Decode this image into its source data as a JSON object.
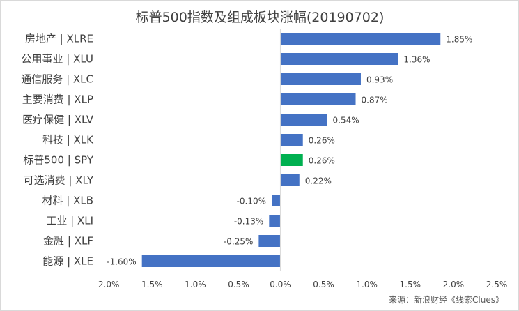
{
  "chart_data": {
    "type": "bar",
    "orientation": "horizontal",
    "title": "标普500指数及组成板块涨幅(20190702)",
    "categories": [
      "房地产 | XLRE",
      "公用事业 | XLU",
      "通信服务 | XLC",
      "主要消费 | XLP",
      "医疗保健 | XLV",
      "科技 | XLK",
      "标普500 | SPY",
      "可选消费 | XLY",
      "材料 | XLB",
      "工业 | XLI",
      "金融 | XLF",
      "能源 | XLE"
    ],
    "values": [
      1.85,
      1.36,
      0.93,
      0.87,
      0.54,
      0.26,
      0.26,
      0.22,
      -0.1,
      -0.13,
      -0.25,
      -1.6
    ],
    "data_labels": [
      "1.85%",
      "1.36%",
      "0.93%",
      "0.87%",
      "0.54%",
      "0.26%",
      "0.26%",
      "0.22%",
      "-0.10%",
      "-0.13%",
      "-0.25%",
      "-1.60%"
    ],
    "xlim": [
      -2.0,
      2.5
    ],
    "x_ticks": [
      -2.0,
      -1.5,
      -1.0,
      -0.5,
      0.0,
      0.5,
      1.0,
      1.5,
      2.0,
      2.5
    ],
    "x_tick_labels": [
      "-2.0%",
      "-1.5%",
      "-1.0%",
      "-0.5%",
      "0.0%",
      "0.5%",
      "1.0%",
      "1.5%",
      "2.0%",
      "2.5%"
    ],
    "grid": false,
    "colors": {
      "bar": "#4472c4",
      "highlight": "#00b050",
      "axis": "#d9d9d9",
      "text": "#404040"
    },
    "highlight_category": "标普500 | SPY",
    "source": "来源：新浪财经《线索Clues》"
  }
}
